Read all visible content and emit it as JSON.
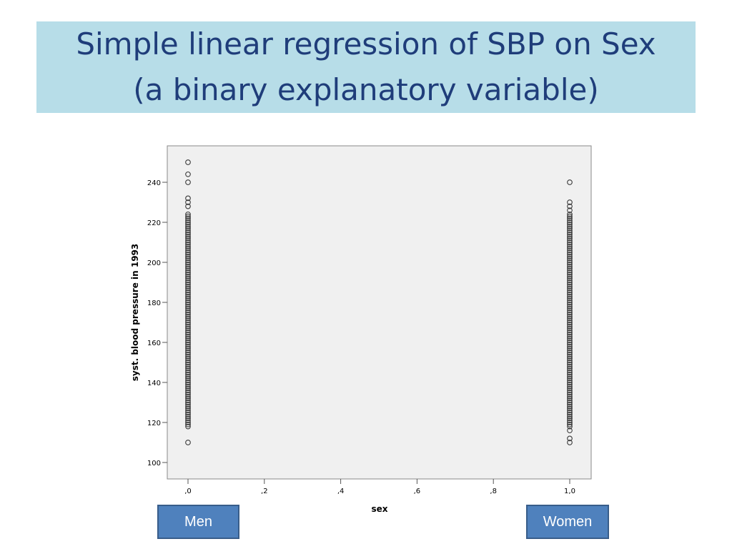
{
  "slide": {
    "title_line1": "Simple linear regression of SBP on Sex",
    "title_line2": "(a binary explanatory variable)"
  },
  "group_labels": {
    "men": "Men",
    "women": "Women"
  },
  "colors": {
    "banner": "#b7dde8",
    "title_text": "#1f3d7a",
    "plot_background": "#f0f0f0",
    "marker": "#3a3a3a",
    "label_box": "#4f81bd"
  },
  "chart_data": {
    "type": "scatter",
    "title": "",
    "xlabel": "sex",
    "ylabel": "syst. blood pressure in 1993",
    "xlim": [
      0,
      1.0
    ],
    "ylim": [
      100,
      250
    ],
    "xticks": [
      0,
      0.2,
      0.4,
      0.6,
      0.8,
      1.0
    ],
    "xtick_labels": [
      ",0",
      ",2",
      ",4",
      ",6",
      ",8",
      "1,0"
    ],
    "yticks": [
      100,
      120,
      140,
      160,
      180,
      200,
      220,
      240
    ],
    "ytick_labels": [
      "100",
      "120",
      "140",
      "160",
      "180",
      "200",
      "220",
      "240"
    ],
    "grid": false,
    "marker": "open-circle",
    "series": [
      {
        "x": 0,
        "y": [
          110,
          118,
          119,
          120,
          121,
          122,
          123,
          124,
          125,
          126,
          127,
          128,
          129,
          130,
          131,
          132,
          133,
          134,
          135,
          136,
          137,
          138,
          139,
          140,
          141,
          142,
          143,
          144,
          145,
          146,
          147,
          148,
          149,
          150,
          151,
          152,
          153,
          154,
          155,
          156,
          157,
          158,
          159,
          160,
          161,
          162,
          163,
          164,
          165,
          166,
          167,
          168,
          169,
          170,
          171,
          172,
          173,
          174,
          175,
          176,
          177,
          178,
          179,
          180,
          181,
          182,
          183,
          184,
          185,
          186,
          187,
          188,
          189,
          190,
          191,
          192,
          193,
          194,
          195,
          196,
          197,
          198,
          199,
          200,
          201,
          202,
          203,
          204,
          205,
          206,
          207,
          208,
          209,
          210,
          211,
          212,
          213,
          214,
          215,
          216,
          217,
          218,
          219,
          220,
          221,
          222,
          223,
          224,
          228,
          230,
          232,
          240,
          244,
          250
        ]
      },
      {
        "x": 1,
        "y": [
          110,
          112,
          116,
          118,
          119,
          120,
          121,
          122,
          123,
          124,
          125,
          126,
          127,
          128,
          129,
          130,
          131,
          132,
          133,
          134,
          135,
          136,
          137,
          138,
          139,
          140,
          141,
          142,
          143,
          144,
          145,
          146,
          147,
          148,
          149,
          150,
          151,
          152,
          153,
          154,
          155,
          156,
          157,
          158,
          159,
          160,
          161,
          162,
          163,
          164,
          165,
          166,
          167,
          168,
          169,
          170,
          171,
          172,
          173,
          174,
          175,
          176,
          177,
          178,
          179,
          180,
          181,
          182,
          183,
          184,
          185,
          186,
          187,
          188,
          189,
          190,
          191,
          192,
          193,
          194,
          195,
          196,
          197,
          198,
          199,
          200,
          201,
          202,
          203,
          204,
          205,
          206,
          207,
          208,
          209,
          210,
          211,
          212,
          213,
          214,
          215,
          216,
          217,
          218,
          219,
          220,
          221,
          222,
          223,
          224,
          226,
          228,
          230,
          240
        ]
      }
    ]
  }
}
